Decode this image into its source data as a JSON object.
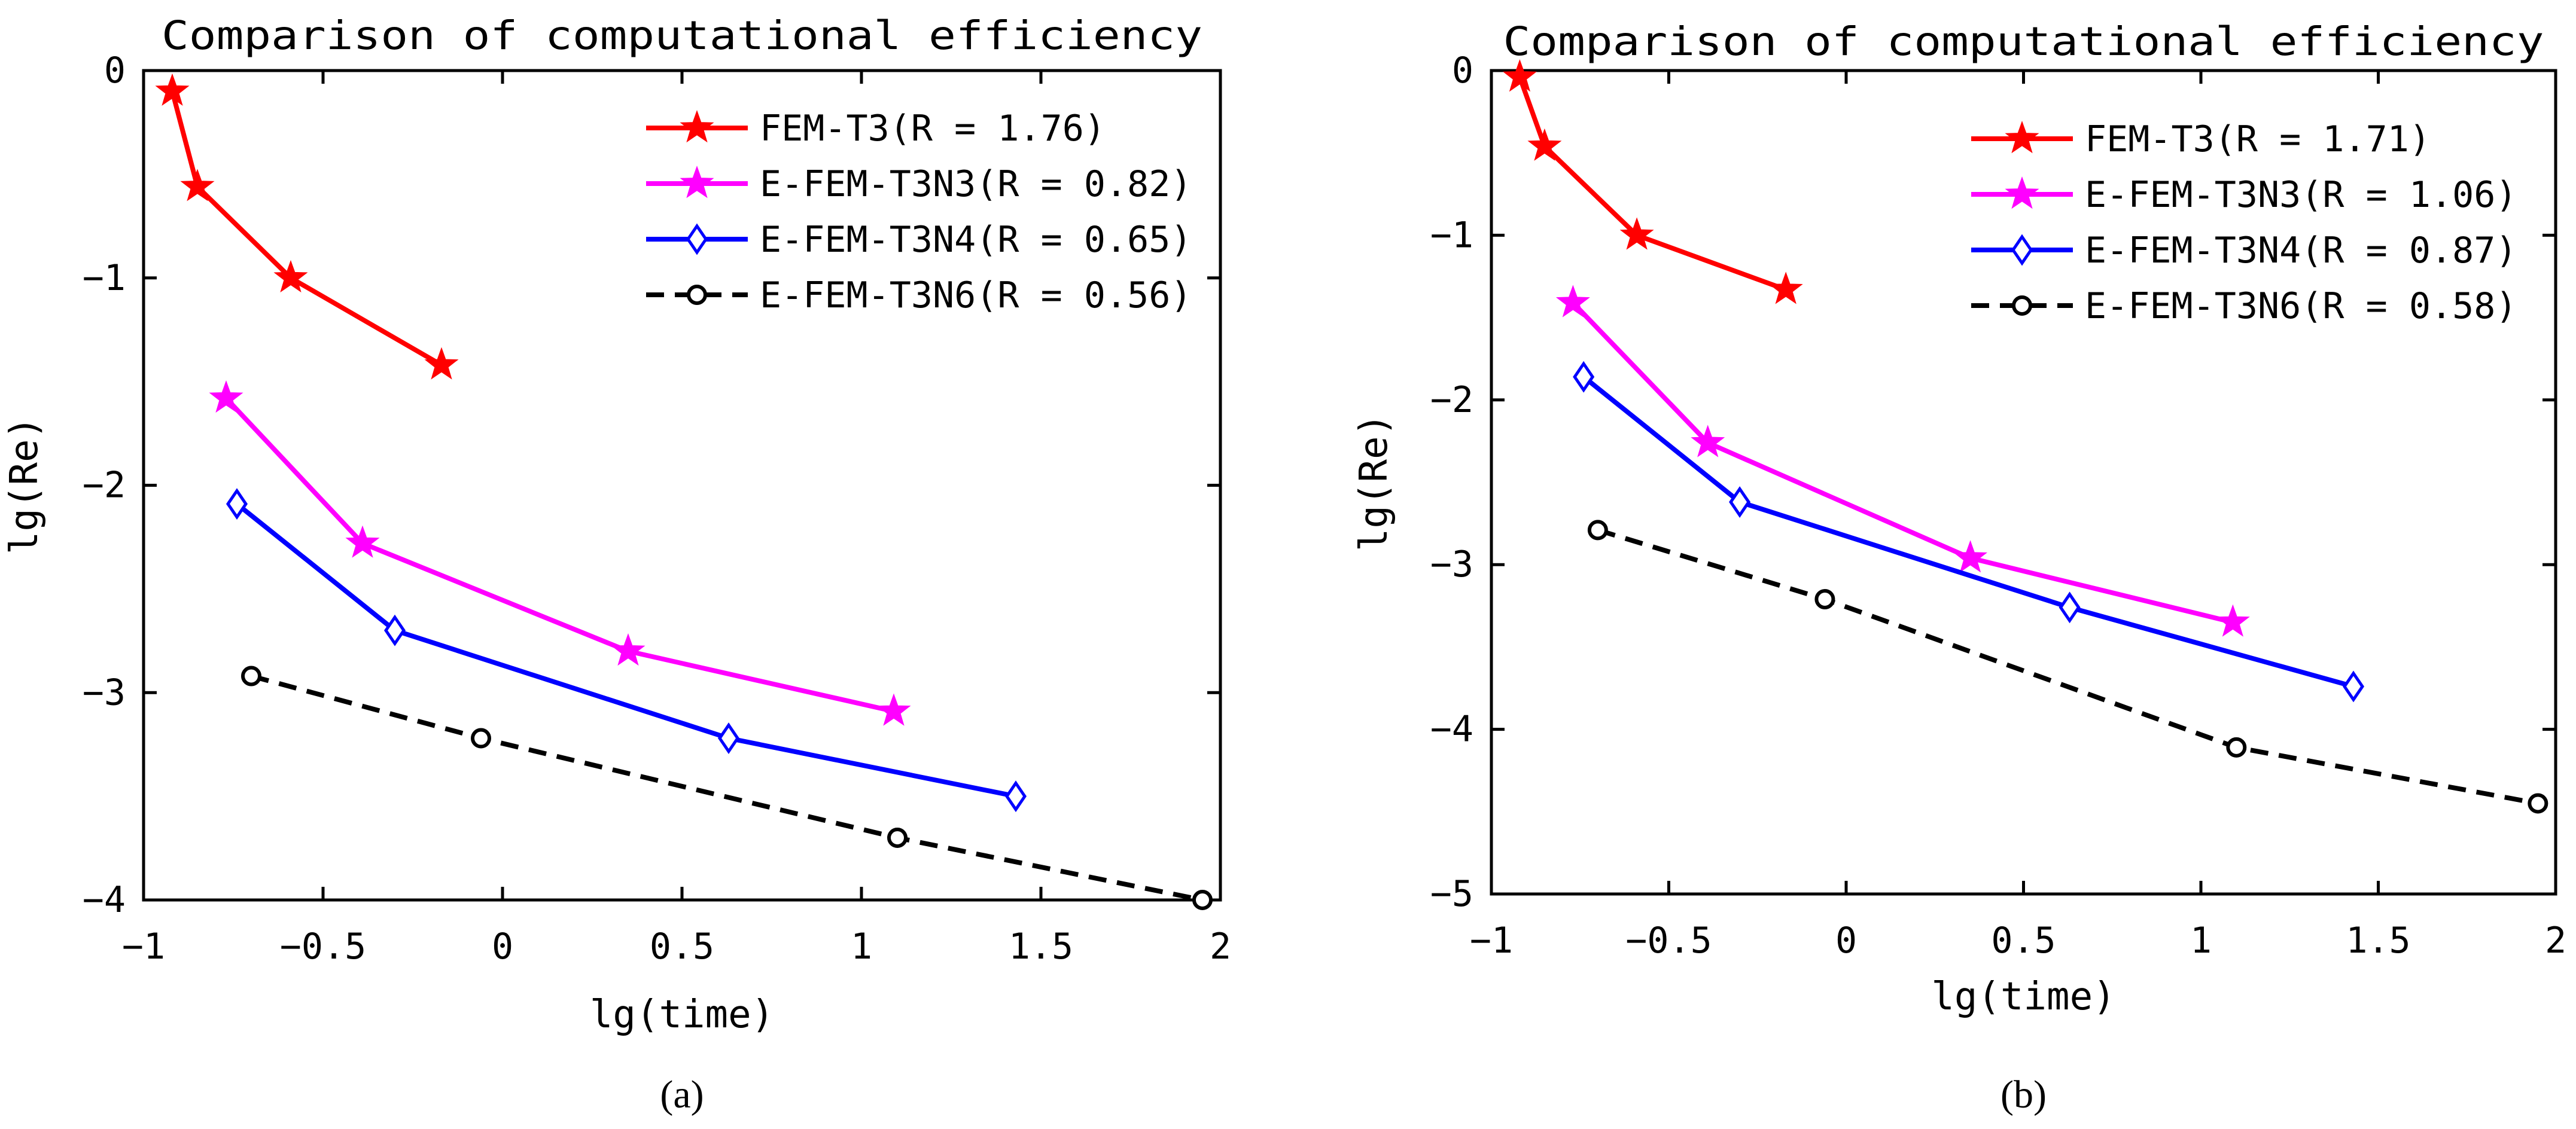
{
  "chart_data": [
    {
      "type": "line",
      "title": "Comparison of computational efficiency",
      "xlabel": "lg(time)",
      "ylabel": "lg(Re)",
      "xlim": [
        -1,
        2
      ],
      "ylim": [
        -4,
        0
      ],
      "xticks": [
        -1,
        -0.5,
        0,
        0.5,
        1,
        1.5,
        2
      ],
      "yticks": [
        -4,
        -3,
        -2,
        -1,
        0
      ],
      "xtick_labels": [
        "−1",
        "−0.5",
        "0",
        "0.5",
        "1",
        "1.5",
        "2"
      ],
      "ytick_labels": [
        "−4",
        "−3",
        "−2",
        "−1",
        "0"
      ],
      "grid": false,
      "legend_position": "top-right",
      "panel_label": "(a)",
      "series": [
        {
          "name": "FEM-T3",
          "legend": "FEM-T3(R = 1.76)",
          "color": "#ff0000",
          "marker": "star",
          "dash": "solid",
          "x": [
            -0.92,
            -0.85,
            -0.59,
            -0.17
          ],
          "y": [
            -0.1,
            -0.56,
            -1.0,
            -1.42
          ]
        },
        {
          "name": "E-FEM-T3N3",
          "legend": "E-FEM-T3N3(R = 0.82)",
          "color": "#ff00ff",
          "marker": "star",
          "dash": "solid",
          "x": [
            -0.77,
            -0.39,
            0.35,
            1.09
          ],
          "y": [
            -1.58,
            -2.28,
            -2.8,
            -3.09
          ]
        },
        {
          "name": "E-FEM-T3N4",
          "legend": "E-FEM-T3N4(R = 0.65)",
          "color": "#0000ff",
          "marker": "diamond",
          "dash": "solid",
          "x": [
            -0.74,
            -0.3,
            0.63,
            1.43
          ],
          "y": [
            -2.09,
            -2.7,
            -3.22,
            -3.5
          ]
        },
        {
          "name": "E-FEM-T3N6",
          "legend": "E-FEM-T3N6(R = 0.56)",
          "color": "#000000",
          "marker": "circle",
          "dash": "dashed",
          "x": [
            -0.7,
            -0.06,
            1.1,
            1.95
          ],
          "y": [
            -2.92,
            -3.22,
            -3.7,
            -4.0
          ]
        }
      ]
    },
    {
      "type": "line",
      "title": "Comparison of computational efficiency",
      "xlabel": "lg(time)",
      "ylabel": "lg(Re)",
      "xlim": [
        -1,
        2
      ],
      "ylim": [
        -5,
        0
      ],
      "xticks": [
        -1,
        -0.5,
        0,
        0.5,
        1,
        1.5,
        2
      ],
      "yticks": [
        -5,
        -4,
        -3,
        -2,
        -1,
        0
      ],
      "xtick_labels": [
        "−1",
        "−0.5",
        "0",
        "0.5",
        "1",
        "1.5",
        "2"
      ],
      "ytick_labels": [
        "−5",
        "−4",
        "−3",
        "−2",
        "−1",
        "0"
      ],
      "grid": false,
      "legend_position": "top-right",
      "panel_label": "(b)",
      "series": [
        {
          "name": "FEM-T3",
          "legend": "FEM-T3(R = 1.71)",
          "color": "#ff0000",
          "marker": "star",
          "dash": "solid",
          "x": [
            -0.92,
            -0.85,
            -0.59,
            -0.17
          ],
          "y": [
            -0.04,
            -0.46,
            -1.0,
            -1.33
          ]
        },
        {
          "name": "E-FEM-T3N3",
          "legend": "E-FEM-T3N3(R = 1.06)",
          "color": "#ff00ff",
          "marker": "star",
          "dash": "solid",
          "x": [
            -0.77,
            -0.39,
            0.35,
            1.09
          ],
          "y": [
            -1.41,
            -2.26,
            -2.96,
            -3.35
          ]
        },
        {
          "name": "E-FEM-T3N4",
          "legend": "E-FEM-T3N4(R = 0.87)",
          "color": "#0000ff",
          "marker": "diamond",
          "dash": "solid",
          "x": [
            -0.74,
            -0.3,
            0.63,
            1.43
          ],
          "y": [
            -1.86,
            -2.62,
            -3.26,
            -3.74
          ]
        },
        {
          "name": "E-FEM-T3N6",
          "legend": "E-FEM-T3N6(R = 0.58)",
          "color": "#000000",
          "marker": "circle",
          "dash": "dashed",
          "x": [
            -0.7,
            -0.06,
            1.1,
            1.95
          ],
          "y": [
            -2.79,
            -3.21,
            -4.11,
            -4.45
          ]
        }
      ]
    }
  ]
}
